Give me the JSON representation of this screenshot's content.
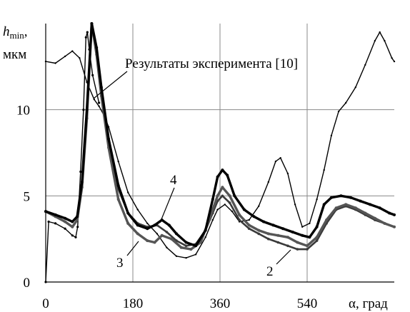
{
  "chart_data": {
    "type": "line",
    "ylabel_main": "h",
    "ylabel_sub": "min",
    "ylabel_units": "мкм",
    "xlabel": "α, град",
    "x_ticks": [
      0,
      180,
      360,
      540
    ],
    "y_ticks": [
      0,
      5,
      10
    ],
    "xlim": [
      0,
      720
    ],
    "ylim": [
      0,
      15
    ],
    "grid": true,
    "annotations": [
      "Результаты эксперимента [10]",
      "4",
      "3",
      "2"
    ],
    "series": [
      {
        "name": "Результаты эксперимента [10]",
        "color": "#000000",
        "points": [
          [
            0,
            12.8
          ],
          [
            20,
            12.7
          ],
          [
            40,
            13.1
          ],
          [
            55,
            13.4
          ],
          [
            70,
            13.0
          ],
          [
            85,
            11.6
          ],
          [
            100,
            10.6
          ],
          [
            110,
            10.2
          ],
          [
            120,
            9.7
          ],
          [
            130,
            9.0
          ],
          [
            150,
            7.0
          ],
          [
            170,
            5.2
          ],
          [
            190,
            4.2
          ],
          [
            210,
            3.4
          ],
          [
            230,
            2.8
          ],
          [
            250,
            2.0
          ],
          [
            270,
            1.5
          ],
          [
            290,
            1.4
          ],
          [
            310,
            1.6
          ],
          [
            330,
            2.6
          ],
          [
            345,
            3.6
          ],
          [
            355,
            4.2
          ],
          [
            370,
            4.5
          ],
          [
            385,
            4.1
          ],
          [
            400,
            3.5
          ],
          [
            420,
            3.6
          ],
          [
            440,
            4.4
          ],
          [
            460,
            5.8
          ],
          [
            475,
            7.0
          ],
          [
            485,
            7.2
          ],
          [
            500,
            6.3
          ],
          [
            515,
            4.5
          ],
          [
            530,
            3.2
          ],
          [
            545,
            3.4
          ],
          [
            560,
            4.8
          ],
          [
            575,
            6.5
          ],
          [
            590,
            8.5
          ],
          [
            605,
            9.9
          ],
          [
            620,
            10.4
          ],
          [
            640,
            11.3
          ],
          [
            660,
            12.6
          ],
          [
            680,
            14.0
          ],
          [
            690,
            14.5
          ],
          [
            700,
            14.0
          ],
          [
            715,
            13.0
          ],
          [
            720,
            12.8
          ]
        ]
      },
      {
        "name": "",
        "color": "#000000",
        "points": [
          [
            0,
            0
          ],
          [
            6,
            3.5
          ],
          [
            20,
            3.4
          ],
          [
            40,
            3.1
          ],
          [
            55,
            2.7
          ],
          [
            62,
            2.6
          ],
          [
            66,
            3.2
          ],
          [
            72,
            6.4
          ],
          [
            78,
            10.0
          ],
          [
            83,
            14.2
          ],
          [
            86,
            14.5
          ],
          [
            90,
            13.5
          ],
          [
            97,
            12.0
          ],
          [
            110,
            10.4
          ]
        ]
      },
      {
        "name": "2",
        "color": "#3a3a3a",
        "points": [
          [
            0,
            4.1
          ],
          [
            20,
            3.8
          ],
          [
            40,
            3.5
          ],
          [
            55,
            3.2
          ],
          [
            65,
            3.6
          ],
          [
            75,
            5.5
          ],
          [
            85,
            9.5
          ],
          [
            95,
            15.0
          ],
          [
            105,
            13.4
          ],
          [
            115,
            11.0
          ],
          [
            130,
            8.0
          ],
          [
            150,
            5.4
          ],
          [
            170,
            4.0
          ],
          [
            190,
            3.4
          ],
          [
            210,
            3.2
          ],
          [
            230,
            3.3
          ],
          [
            250,
            2.9
          ],
          [
            270,
            2.4
          ],
          [
            290,
            2.1
          ],
          [
            310,
            2.2
          ],
          [
            330,
            3.0
          ],
          [
            345,
            4.0
          ],
          [
            355,
            4.7
          ],
          [
            365,
            5.0
          ],
          [
            380,
            4.6
          ],
          [
            400,
            3.6
          ],
          [
            420,
            3.1
          ],
          [
            440,
            2.8
          ],
          [
            460,
            2.5
          ],
          [
            480,
            2.3
          ],
          [
            500,
            2.1
          ],
          [
            520,
            1.9
          ],
          [
            540,
            1.9
          ],
          [
            560,
            2.4
          ],
          [
            580,
            3.4
          ],
          [
            600,
            4.2
          ],
          [
            620,
            4.4
          ],
          [
            640,
            4.2
          ],
          [
            660,
            3.9
          ],
          [
            680,
            3.6
          ],
          [
            700,
            3.4
          ],
          [
            720,
            3.2
          ]
        ]
      },
      {
        "name": "3",
        "color": "#555555",
        "points": [
          [
            0,
            4.1
          ],
          [
            20,
            3.8
          ],
          [
            40,
            3.5
          ],
          [
            55,
            3.2
          ],
          [
            65,
            3.6
          ],
          [
            75,
            5.5
          ],
          [
            85,
            9.5
          ],
          [
            95,
            15.0
          ],
          [
            105,
            13.2
          ],
          [
            115,
            10.8
          ],
          [
            130,
            7.8
          ],
          [
            150,
            4.8
          ],
          [
            170,
            3.4
          ],
          [
            190,
            2.8
          ],
          [
            210,
            2.4
          ],
          [
            225,
            2.3
          ],
          [
            240,
            2.7
          ],
          [
            260,
            2.5
          ],
          [
            280,
            2.0
          ],
          [
            300,
            1.9
          ],
          [
            320,
            2.3
          ],
          [
            340,
            3.8
          ],
          [
            355,
            5.0
          ],
          [
            365,
            5.5
          ],
          [
            380,
            5.0
          ],
          [
            400,
            3.9
          ],
          [
            420,
            3.3
          ],
          [
            440,
            3.0
          ],
          [
            460,
            2.8
          ],
          [
            480,
            2.7
          ],
          [
            500,
            2.6
          ],
          [
            520,
            2.3
          ],
          [
            540,
            2.1
          ],
          [
            560,
            2.6
          ],
          [
            580,
            3.6
          ],
          [
            600,
            4.3
          ],
          [
            620,
            4.5
          ],
          [
            640,
            4.3
          ],
          [
            660,
            4.0
          ],
          [
            680,
            3.7
          ],
          [
            700,
            3.4
          ],
          [
            720,
            3.2
          ]
        ]
      },
      {
        "name": "4",
        "color": "#000000",
        "points": [
          [
            0,
            4.1
          ],
          [
            20,
            3.9
          ],
          [
            40,
            3.7
          ],
          [
            55,
            3.5
          ],
          [
            65,
            3.8
          ],
          [
            75,
            5.8
          ],
          [
            85,
            10.0
          ],
          [
            95,
            15.0
          ],
          [
            105,
            13.6
          ],
          [
            115,
            11.3
          ],
          [
            130,
            8.3
          ],
          [
            150,
            5.6
          ],
          [
            170,
            4.0
          ],
          [
            190,
            3.3
          ],
          [
            210,
            3.1
          ],
          [
            225,
            3.3
          ],
          [
            240,
            3.6
          ],
          [
            255,
            3.3
          ],
          [
            270,
            2.8
          ],
          [
            290,
            2.3
          ],
          [
            310,
            2.1
          ],
          [
            330,
            3.0
          ],
          [
            345,
            4.8
          ],
          [
            355,
            6.1
          ],
          [
            365,
            6.5
          ],
          [
            375,
            6.2
          ],
          [
            390,
            5.0
          ],
          [
            410,
            4.2
          ],
          [
            430,
            3.8
          ],
          [
            450,
            3.5
          ],
          [
            470,
            3.3
          ],
          [
            490,
            3.1
          ],
          [
            510,
            2.9
          ],
          [
            530,
            2.7
          ],
          [
            545,
            2.6
          ],
          [
            560,
            3.2
          ],
          [
            575,
            4.5
          ],
          [
            590,
            4.9
          ],
          [
            610,
            5.0
          ],
          [
            630,
            4.9
          ],
          [
            650,
            4.7
          ],
          [
            670,
            4.5
          ],
          [
            690,
            4.3
          ],
          [
            710,
            4.0
          ],
          [
            720,
            3.9
          ]
        ]
      }
    ]
  }
}
